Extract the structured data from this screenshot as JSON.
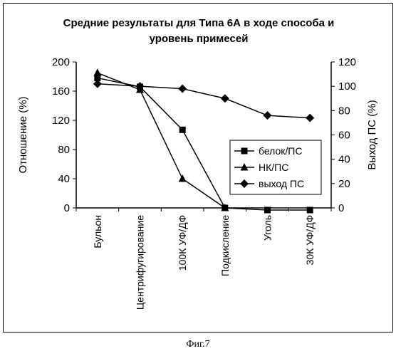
{
  "chart_data": {
    "type": "line",
    "title_lines": [
      "Средние результаты для Типа 6А в ходе способа и",
      "уровень примесей"
    ],
    "ylabel_left": "Отношение (%)",
    "ylabel_right": "Выход ПС (%)",
    "ylim_left": [
      0,
      200
    ],
    "ylim_right": [
      0,
      120
    ],
    "yticks_left": [
      "0",
      "40",
      "80",
      "120",
      "160",
      "200"
    ],
    "yticks_right": [
      "0",
      "20",
      "40",
      "60",
      "80",
      "100",
      "120"
    ],
    "categories": [
      "Бульон",
      "Центрифугирование",
      "100К УФ/ДФ",
      "Подкисление",
      "Уголь",
      "30К УФ/ДФ"
    ],
    "series": [
      {
        "name": "белок/ПС",
        "axis": "left",
        "marker": "square",
        "values": [
          178,
          166,
          107,
          0,
          -3,
          -3
        ]
      },
      {
        "name": "НК/ПС",
        "axis": "left",
        "marker": "triangle",
        "values": [
          185,
          162,
          40,
          0,
          null,
          null
        ]
      },
      {
        "name": "выход ПС",
        "axis": "right",
        "marker": "diamond",
        "values": [
          102,
          100,
          98,
          90,
          76,
          74
        ]
      }
    ],
    "legend_position": "right",
    "grid": false
  },
  "caption": "Фиг.7"
}
